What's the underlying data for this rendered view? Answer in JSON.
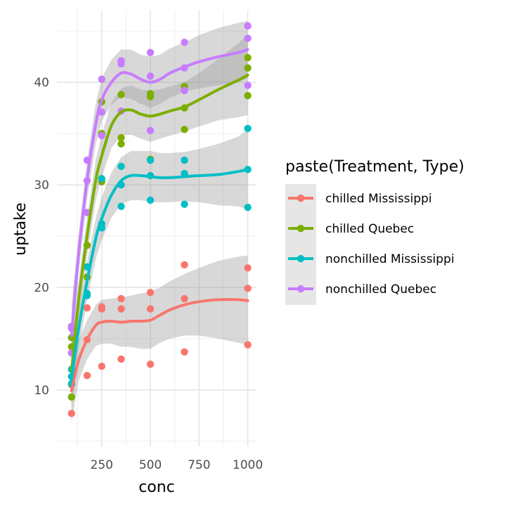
{
  "chart_data": {
    "type": "scatter",
    "xlabel": "conc",
    "ylabel": "uptake",
    "xlim": [
      20,
      1045
    ],
    "ylim": [
      4.5,
      47
    ],
    "x_ticks": [
      250,
      500,
      750,
      1000
    ],
    "y_ticks": [
      10,
      20,
      30,
      40
    ],
    "grid": true,
    "legend": {
      "title": "paste(Treatment, Type)",
      "position": "right",
      "entries": [
        "chilled Mississippi",
        "chilled Quebec",
        "nonchilled Mississippi",
        "nonchilled Quebec"
      ]
    },
    "series": [
      {
        "name": "chilled Mississippi",
        "color": "#F8766D",
        "points": [
          [
            95,
            7.7
          ],
          [
            95,
            10.6
          ],
          [
            95,
            10.5
          ],
          [
            175,
            11.4
          ],
          [
            175,
            18.0
          ],
          [
            175,
            14.9
          ],
          [
            250,
            12.3
          ],
          [
            250,
            17.9
          ],
          [
            250,
            18.1
          ],
          [
            350,
            13.0
          ],
          [
            350,
            17.9
          ],
          [
            350,
            18.9
          ],
          [
            500,
            12.5
          ],
          [
            500,
            17.9
          ],
          [
            500,
            19.5
          ],
          [
            675,
            13.7
          ],
          [
            675,
            18.9
          ],
          [
            675,
            22.2
          ],
          [
            1000,
            14.4
          ],
          [
            1000,
            19.9
          ],
          [
            1000,
            21.9
          ]
        ],
        "smooth": [
          [
            95,
            9.9
          ],
          [
            130,
            12.8
          ],
          [
            175,
            14.9
          ],
          [
            220,
            16.3
          ],
          [
            250,
            16.6
          ],
          [
            300,
            16.7
          ],
          [
            350,
            16.6
          ],
          [
            400,
            16.7
          ],
          [
            450,
            16.7
          ],
          [
            500,
            16.8
          ],
          [
            550,
            17.3
          ],
          [
            600,
            17.8
          ],
          [
            675,
            18.3
          ],
          [
            750,
            18.6
          ],
          [
            850,
            18.8
          ],
          [
            950,
            18.8
          ],
          [
            1000,
            18.7
          ]
        ],
        "band_upper": [
          [
            95,
            13.0
          ],
          [
            130,
            14.8
          ],
          [
            175,
            16.8
          ],
          [
            220,
            18.3
          ],
          [
            250,
            18.8
          ],
          [
            300,
            18.9
          ],
          [
            350,
            19.0
          ],
          [
            400,
            19.2
          ],
          [
            450,
            19.4
          ],
          [
            500,
            19.6
          ],
          [
            550,
            20.0
          ],
          [
            600,
            20.6
          ],
          [
            675,
            21.3
          ],
          [
            750,
            21.9
          ],
          [
            850,
            22.6
          ],
          [
            950,
            23.0
          ],
          [
            1000,
            23.1
          ]
        ],
        "band_lower": [
          [
            95,
            6.8
          ],
          [
            130,
            10.8
          ],
          [
            175,
            13.0
          ],
          [
            220,
            14.3
          ],
          [
            250,
            14.5
          ],
          [
            300,
            14.5
          ],
          [
            350,
            14.2
          ],
          [
            400,
            14.2
          ],
          [
            450,
            14.0
          ],
          [
            500,
            14.0
          ],
          [
            550,
            14.6
          ],
          [
            600,
            15.0
          ],
          [
            675,
            15.3
          ],
          [
            750,
            15.3
          ],
          [
            850,
            15.0
          ],
          [
            950,
            14.6
          ],
          [
            1000,
            14.4
          ]
        ]
      },
      {
        "name": "chilled Quebec",
        "color": "#7CAE00",
        "points": [
          [
            95,
            14.2
          ],
          [
            95,
            9.3
          ],
          [
            95,
            15.1
          ],
          [
            175,
            24.1
          ],
          [
            175,
            27.3
          ],
          [
            175,
            21.0
          ],
          [
            250,
            30.3
          ],
          [
            250,
            35.0
          ],
          [
            250,
            38.1
          ],
          [
            350,
            34.6
          ],
          [
            350,
            38.8
          ],
          [
            350,
            34.0
          ],
          [
            500,
            32.5
          ],
          [
            500,
            38.6
          ],
          [
            500,
            38.9
          ],
          [
            675,
            35.4
          ],
          [
            675,
            37.5
          ],
          [
            675,
            39.6
          ],
          [
            1000,
            38.7
          ],
          [
            1000,
            42.4
          ],
          [
            1000,
            41.4
          ]
        ],
        "smooth": [
          [
            95,
            11.8
          ],
          [
            130,
            18.5
          ],
          [
            175,
            25.0
          ],
          [
            220,
            30.5
          ],
          [
            250,
            32.8
          ],
          [
            300,
            35.8
          ],
          [
            350,
            37.1
          ],
          [
            400,
            37.3
          ],
          [
            450,
            36.9
          ],
          [
            500,
            36.7
          ],
          [
            550,
            36.9
          ],
          [
            600,
            37.2
          ],
          [
            675,
            37.6
          ],
          [
            750,
            38.3
          ],
          [
            850,
            39.3
          ],
          [
            950,
            40.2
          ],
          [
            1000,
            40.7
          ]
        ],
        "band_upper": [
          [
            95,
            14.8
          ],
          [
            130,
            20.4
          ],
          [
            175,
            26.9
          ],
          [
            220,
            32.5
          ],
          [
            250,
            34.9
          ],
          [
            300,
            38.0
          ],
          [
            350,
            39.4
          ],
          [
            400,
            39.7
          ],
          [
            450,
            39.3
          ],
          [
            500,
            39.2
          ],
          [
            550,
            39.3
          ],
          [
            600,
            39.6
          ],
          [
            675,
            40.0
          ],
          [
            750,
            40.9
          ],
          [
            850,
            42.3
          ],
          [
            950,
            43.8
          ],
          [
            1000,
            44.6
          ]
        ],
        "band_lower": [
          [
            95,
            8.8
          ],
          [
            130,
            16.6
          ],
          [
            175,
            23.1
          ],
          [
            220,
            28.5
          ],
          [
            250,
            30.7
          ],
          [
            300,
            33.6
          ],
          [
            350,
            34.8
          ],
          [
            400,
            34.9
          ],
          [
            450,
            34.5
          ],
          [
            500,
            34.2
          ],
          [
            550,
            34.5
          ],
          [
            600,
            34.8
          ],
          [
            675,
            35.2
          ],
          [
            750,
            35.7
          ],
          [
            850,
            36.3
          ],
          [
            950,
            36.6
          ],
          [
            1000,
            36.8
          ]
        ]
      },
      {
        "name": "nonchilled Mississippi",
        "color": "#00BFC4",
        "points": [
          [
            95,
            10.6
          ],
          [
            95,
            12.0
          ],
          [
            95,
            11.3
          ],
          [
            175,
            19.2
          ],
          [
            175,
            22.0
          ],
          [
            175,
            19.4
          ],
          [
            250,
            26.2
          ],
          [
            250,
            30.6
          ],
          [
            250,
            25.8
          ],
          [
            350,
            30.0
          ],
          [
            350,
            31.8
          ],
          [
            350,
            27.9
          ],
          [
            500,
            30.9
          ],
          [
            500,
            32.4
          ],
          [
            500,
            28.5
          ],
          [
            675,
            32.4
          ],
          [
            675,
            31.1
          ],
          [
            675,
            28.1
          ],
          [
            1000,
            35.5
          ],
          [
            1000,
            31.5
          ],
          [
            1000,
            27.8
          ]
        ],
        "smooth": [
          [
            95,
            11.0
          ],
          [
            130,
            15.8
          ],
          [
            175,
            20.6
          ],
          [
            220,
            24.8
          ],
          [
            250,
            26.7
          ],
          [
            300,
            29.0
          ],
          [
            350,
            30.4
          ],
          [
            400,
            30.9
          ],
          [
            450,
            30.9
          ],
          [
            500,
            30.8
          ],
          [
            550,
            30.7
          ],
          [
            600,
            30.7
          ],
          [
            675,
            30.8
          ],
          [
            750,
            30.9
          ],
          [
            850,
            31.0
          ],
          [
            950,
            31.3
          ],
          [
            1000,
            31.5
          ]
        ],
        "band_upper": [
          [
            95,
            14.0
          ],
          [
            130,
            17.7
          ],
          [
            175,
            22.5
          ],
          [
            220,
            26.8
          ],
          [
            250,
            28.8
          ],
          [
            300,
            31.2
          ],
          [
            350,
            32.7
          ],
          [
            400,
            33.3
          ],
          [
            450,
            33.3
          ],
          [
            500,
            33.3
          ],
          [
            550,
            33.1
          ],
          [
            600,
            33.1
          ],
          [
            675,
            33.2
          ],
          [
            750,
            33.5
          ],
          [
            850,
            34.0
          ],
          [
            950,
            34.7
          ],
          [
            1000,
            35.4
          ]
        ],
        "band_lower": [
          [
            95,
            8.0
          ],
          [
            130,
            13.9
          ],
          [
            175,
            18.7
          ],
          [
            220,
            22.8
          ],
          [
            250,
            24.6
          ],
          [
            300,
            26.8
          ],
          [
            350,
            28.1
          ],
          [
            400,
            28.5
          ],
          [
            450,
            28.5
          ],
          [
            500,
            28.3
          ],
          [
            550,
            28.3
          ],
          [
            600,
            28.3
          ],
          [
            675,
            28.4
          ],
          [
            750,
            28.3
          ],
          [
            850,
            28.0
          ],
          [
            950,
            27.9
          ],
          [
            1000,
            27.6
          ]
        ]
      },
      {
        "name": "nonchilled Quebec",
        "color": "#C77CFF",
        "points": [
          [
            95,
            16.0
          ],
          [
            95,
            13.6
          ],
          [
            95,
            16.2
          ],
          [
            175,
            30.4
          ],
          [
            175,
            27.3
          ],
          [
            175,
            32.4
          ],
          [
            250,
            34.8
          ],
          [
            250,
            37.1
          ],
          [
            250,
            40.3
          ],
          [
            350,
            37.2
          ],
          [
            350,
            41.8
          ],
          [
            350,
            42.1
          ],
          [
            500,
            35.3
          ],
          [
            500,
            40.6
          ],
          [
            500,
            42.9
          ],
          [
            675,
            39.2
          ],
          [
            675,
            41.4
          ],
          [
            675,
            43.9
          ],
          [
            1000,
            39.7
          ],
          [
            1000,
            44.3
          ],
          [
            1000,
            45.5
          ]
        ],
        "smooth": [
          [
            95,
            15.3
          ],
          [
            130,
            23.0
          ],
          [
            175,
            30.5
          ],
          [
            220,
            36.0
          ],
          [
            250,
            38.3
          ],
          [
            300,
            40.0
          ],
          [
            350,
            40.9
          ],
          [
            400,
            40.8
          ],
          [
            450,
            40.3
          ],
          [
            500,
            40.0
          ],
          [
            550,
            40.3
          ],
          [
            600,
            40.9
          ],
          [
            675,
            41.5
          ],
          [
            750,
            42.0
          ],
          [
            850,
            42.5
          ],
          [
            950,
            42.9
          ],
          [
            1000,
            43.2
          ]
        ],
        "band_upper": [
          [
            95,
            18.3
          ],
          [
            130,
            24.9
          ],
          [
            175,
            32.4
          ],
          [
            220,
            38.0
          ],
          [
            250,
            40.4
          ],
          [
            300,
            42.2
          ],
          [
            350,
            43.2
          ],
          [
            400,
            43.2
          ],
          [
            450,
            42.7
          ],
          [
            500,
            42.5
          ],
          [
            550,
            42.7
          ],
          [
            600,
            43.3
          ],
          [
            675,
            43.9
          ],
          [
            750,
            44.6
          ],
          [
            850,
            45.3
          ],
          [
            950,
            45.8
          ],
          [
            1000,
            46.0
          ]
        ],
        "band_lower": [
          [
            95,
            12.3
          ],
          [
            130,
            21.1
          ],
          [
            175,
            28.6
          ],
          [
            220,
            34.0
          ],
          [
            250,
            36.2
          ],
          [
            300,
            37.8
          ],
          [
            350,
            38.6
          ],
          [
            400,
            38.4
          ],
          [
            450,
            37.9
          ],
          [
            500,
            37.5
          ],
          [
            550,
            37.9
          ],
          [
            600,
            38.5
          ],
          [
            675,
            39.1
          ],
          [
            750,
            39.4
          ],
          [
            850,
            39.7
          ],
          [
            950,
            40.0
          ],
          [
            1000,
            40.4
          ]
        ]
      }
    ]
  }
}
